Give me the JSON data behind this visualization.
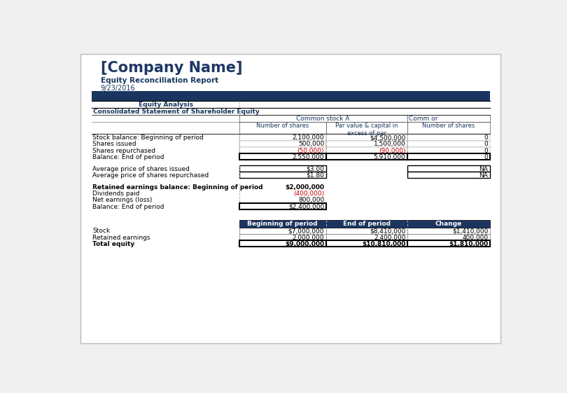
{
  "company_name": "[Company Name]",
  "report_title": "Equity Reconciliation Report",
  "report_date": "9/23/2016",
  "header_bg": "#1a3560",
  "title_color": "#1f3864",
  "subtitle_color": "#17375e",
  "red_color": "#c00000",
  "rows_main": [
    {
      "label": "Stock balance: Beginning of period",
      "c1": "2,100,000",
      "c2": "$4,500,000",
      "c3": "0",
      "c1_red": false,
      "c2_red": false,
      "bold": false
    },
    {
      "label": "Shares issued",
      "c1": "500,000",
      "c2": "1,500,000",
      "c3": "0",
      "c1_red": false,
      "c2_red": false,
      "bold": false
    },
    {
      "label": "Shares repurchased",
      "c1": "(50,000)",
      "c2": "(90,000)",
      "c3": "0",
      "c1_red": true,
      "c2_red": true,
      "bold": false
    },
    {
      "label": "Balance: End of period",
      "c1": "2,550,000",
      "c2": "5,910,000",
      "c3": "0",
      "c1_red": false,
      "c2_red": false,
      "bold": false
    }
  ],
  "rows_avg": [
    {
      "label": "Average price of shares issued",
      "c1": "$3.00",
      "c3": "NA"
    },
    {
      "label": "Average price of shares repurchased",
      "c1": "$1.80",
      "c3": "NA"
    }
  ],
  "rows_retained": [
    {
      "label": "Retained earnings balance: Beginning of period",
      "c1": "$2,000,000",
      "bold": true,
      "c1_red": false
    },
    {
      "label": "Dividends paid",
      "c1": "(400,000)",
      "bold": false,
      "c1_red": true
    },
    {
      "label": "Net earnings (loss)",
      "c1": "800,000",
      "bold": false,
      "c1_red": false
    },
    {
      "label": "Balance: End of period",
      "c1": "$2,400,000",
      "bold": false,
      "c1_red": false
    }
  ],
  "summary_headers": [
    "Beginning of period",
    "End of period",
    "Change"
  ],
  "summary_rows": [
    {
      "label": "Stock",
      "c1": "$7,000,000",
      "c2": "$8,410,000",
      "c3": "$1,410,000",
      "bold": false
    },
    {
      "label": "Retained earnings",
      "c1": "2,000,000",
      "c2": "2,400,000",
      "c3": "400,000",
      "bold": false
    },
    {
      "label": "Total equity",
      "c1": "$9,000,000",
      "c2": "$10,810,000",
      "c3": "$1,810,000",
      "bold": true
    }
  ],
  "col_header1": "Common stock A",
  "col_header_right": "Comm or",
  "sub_col1": "Number of shares",
  "sub_col2": "Par value & capital in\nexcess of par",
  "sub_col3": "Number of shares",
  "section1_label": "Equity Analysis",
  "section2_label": "Consolidated Statement of Shareholder Equity"
}
